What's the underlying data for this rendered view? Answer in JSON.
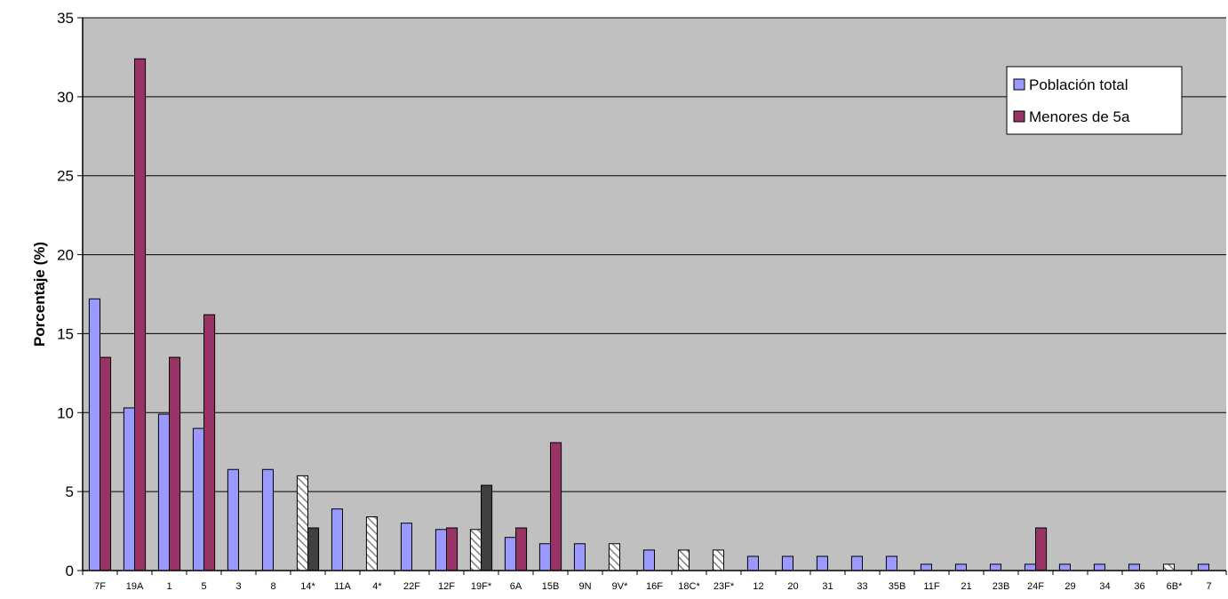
{
  "chart_data": {
    "type": "bar",
    "title": "",
    "xlabel": "",
    "ylabel": "Porcentaje (%)",
    "ylim": [
      0,
      35
    ],
    "yticks": [
      0,
      5,
      10,
      15,
      20,
      25,
      30,
      35
    ],
    "grid": true,
    "legend_position": "top-right",
    "categories": [
      "7F",
      "19A",
      "1",
      "5",
      "3",
      "8",
      "14*",
      "11A",
      "4*",
      "22F",
      "12F",
      "19F*",
      "6A",
      "15B",
      "9N",
      "9V*",
      "16F",
      "18C*",
      "23F*",
      "12",
      "20",
      "31",
      "33",
      "35B",
      "11F",
      "21",
      "23B",
      "24F",
      "29",
      "34",
      "36",
      "6B*",
      "7"
    ],
    "vaccine_serotypes": [
      "14*",
      "4*",
      "19F*",
      "9V*",
      "18C*",
      "23F*",
      "6B*"
    ],
    "series": [
      {
        "name": "Población total",
        "color": "#9999ff",
        "values": [
          17.2,
          10.3,
          9.9,
          9.0,
          6.4,
          6.4,
          6.0,
          3.9,
          3.4,
          3.0,
          2.6,
          2.6,
          2.1,
          1.7,
          1.7,
          1.7,
          1.3,
          1.3,
          1.3,
          0.9,
          0.9,
          0.9,
          0.9,
          0.9,
          0.4,
          0.4,
          0.4,
          0.4,
          0.4,
          0.4,
          0.4,
          0.4,
          0.4
        ]
      },
      {
        "name": "Menores de 5a",
        "color": "#993366",
        "values": [
          13.5,
          32.4,
          13.5,
          16.2,
          0,
          0,
          2.7,
          0,
          0,
          0,
          2.7,
          5.4,
          2.7,
          8.1,
          0,
          0,
          0,
          0,
          0,
          0,
          0,
          0,
          0,
          0,
          0,
          0,
          0,
          2.7,
          0,
          0,
          0,
          0,
          0
        ]
      }
    ]
  },
  "colors": {
    "plot_background": "#c0c0c0",
    "gridline": "#000000",
    "hatch": "#808080"
  }
}
